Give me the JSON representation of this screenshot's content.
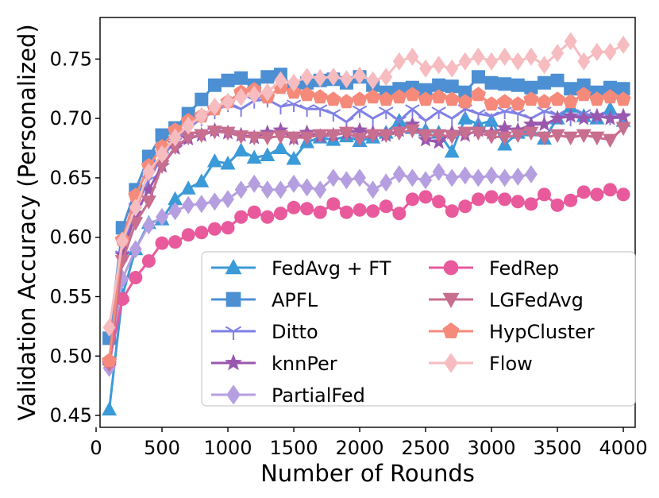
{
  "chart_data": {
    "type": "line",
    "title": "",
    "xlabel": "Number of Rounds",
    "ylabel": "Validation Accuracy (Personalized)",
    "xlim": [
      30,
      4090
    ],
    "ylim": [
      0.44,
      0.785
    ],
    "xticks": [
      0,
      500,
      1000,
      1500,
      2000,
      2500,
      3000,
      3500,
      4000
    ],
    "yticks": [
      0.45,
      0.5,
      0.55,
      0.6,
      0.65,
      0.7,
      0.75
    ],
    "ytick_labels": [
      "0.45",
      "0.50",
      "0.55",
      "0.60",
      "0.65",
      "0.70",
      "0.75"
    ],
    "grid": false,
    "legend_position": "lower-right",
    "legend_columns": 2,
    "series": [
      {
        "name": "FedAvg + FT",
        "color": "#3b9ad8",
        "marker": "triangle",
        "x": [
          100,
          200,
          300,
          400,
          500,
          600,
          700,
          800,
          900,
          1000,
          1100,
          1200,
          1300,
          1400,
          1500,
          1600,
          1700,
          1800,
          1900,
          2000,
          2100,
          2200,
          2300,
          2400,
          2500,
          2600,
          2700,
          2800,
          2900,
          3000,
          3100,
          3200,
          3300,
          3400,
          3500,
          3600,
          3700,
          3800,
          3900,
          4000
        ],
        "y": [
          0.455,
          0.551,
          0.59,
          0.612,
          0.615,
          0.632,
          0.641,
          0.647,
          0.664,
          0.662,
          0.673,
          0.667,
          0.669,
          0.675,
          0.666,
          0.68,
          0.684,
          0.682,
          0.685,
          0.681,
          0.684,
          0.688,
          0.698,
          0.692,
          0.69,
          0.688,
          0.672,
          0.7,
          0.695,
          0.698,
          0.678,
          0.688,
          0.69,
          0.683,
          0.7,
          0.71,
          0.702,
          0.7,
          0.708,
          0.698
        ]
      },
      {
        "name": "APFL",
        "color": "#4c8fd3",
        "marker": "square",
        "x": [
          100,
          200,
          300,
          400,
          500,
          600,
          700,
          800,
          900,
          1000,
          1100,
          1200,
          1300,
          1400,
          1500,
          1600,
          1700,
          1800,
          1900,
          2000,
          2100,
          2200,
          2300,
          2400,
          2500,
          2600,
          2700,
          2800,
          2900,
          3000,
          3100,
          3200,
          3300,
          3400,
          3500,
          3600,
          3700,
          3800,
          3900,
          4000
        ],
        "y": [
          0.515,
          0.608,
          0.64,
          0.668,
          0.686,
          0.692,
          0.704,
          0.716,
          0.728,
          0.732,
          0.734,
          0.728,
          0.735,
          0.737,
          0.726,
          0.73,
          0.732,
          0.733,
          0.73,
          0.735,
          0.728,
          0.722,
          0.725,
          0.726,
          0.724,
          0.728,
          0.727,
          0.722,
          0.735,
          0.73,
          0.729,
          0.728,
          0.726,
          0.73,
          0.732,
          0.725,
          0.728,
          0.722,
          0.726,
          0.725
        ]
      },
      {
        "name": "Ditto",
        "color": "#8080e6",
        "marker": "tri_down",
        "x": [
          100,
          200,
          300,
          400,
          500,
          600,
          700,
          800,
          900,
          1000,
          1100,
          1200,
          1300,
          1400,
          1500,
          1600,
          1700,
          1800,
          1900,
          2000,
          2100,
          2200,
          2300,
          2400,
          2500,
          2600,
          2700,
          2800,
          2900,
          3000,
          3100,
          3200,
          3300,
          3400,
          3500,
          3600,
          3700,
          3800,
          3900,
          4000
        ],
        "y": [
          0.49,
          0.585,
          0.625,
          0.648,
          0.668,
          0.68,
          0.692,
          0.7,
          0.706,
          0.712,
          0.708,
          0.715,
          0.716,
          0.71,
          0.712,
          0.708,
          0.708,
          0.704,
          0.697,
          0.707,
          0.7,
          0.706,
          0.698,
          0.708,
          0.698,
          0.706,
          0.7,
          0.708,
          0.704,
          0.702,
          0.706,
          0.704,
          0.7,
          0.706,
          0.703,
          0.7,
          0.704,
          0.702,
          0.701,
          0.7
        ]
      },
      {
        "name": "knnPer",
        "color": "#9a57ae",
        "marker": "star",
        "x": [
          100,
          200,
          300,
          400,
          500,
          600,
          700,
          800,
          900,
          1000,
          1100,
          1200,
          1300,
          1400,
          1500,
          1600,
          1700,
          1800,
          1900,
          2000,
          2100,
          2200,
          2300,
          2400,
          2500,
          2600,
          2700,
          2800,
          2900,
          3000,
          3100,
          3200,
          3300,
          3400,
          3500,
          3600,
          3700,
          3800,
          3900,
          4000
        ],
        "y": [
          0.493,
          0.585,
          0.62,
          0.64,
          0.66,
          0.675,
          0.683,
          0.686,
          0.69,
          0.688,
          0.686,
          0.684,
          0.688,
          0.69,
          0.683,
          0.688,
          0.685,
          0.686,
          0.688,
          0.69,
          0.688,
          0.686,
          0.69,
          0.695,
          0.682,
          0.68,
          0.688,
          0.686,
          0.69,
          0.688,
          0.692,
          0.69,
          0.695,
          0.695,
          0.7,
          0.702,
          0.7,
          0.702,
          0.7,
          0.702
        ]
      },
      {
        "name": "PartialFed",
        "color": "#b59fe0",
        "marker": "diamond",
        "x": [
          100,
          200,
          300,
          400,
          500,
          600,
          700,
          800,
          900,
          1000,
          1100,
          1200,
          1300,
          1400,
          1500,
          1600,
          1700,
          1800,
          1900,
          2000,
          2100,
          2200,
          2300,
          2400,
          2500,
          2600,
          2700,
          2800,
          2900,
          3000,
          3100,
          3200,
          3300
        ],
        "y": [
          0.49,
          0.565,
          0.59,
          0.61,
          0.617,
          0.622,
          0.627,
          0.628,
          0.63,
          0.632,
          0.64,
          0.645,
          0.64,
          0.64,
          0.645,
          0.642,
          0.64,
          0.65,
          0.648,
          0.65,
          0.64,
          0.646,
          0.653,
          0.65,
          0.648,
          0.655,
          0.65,
          0.652,
          0.65,
          0.652,
          0.65,
          0.651,
          0.653
        ]
      },
      {
        "name": "FedRep",
        "color": "#e85a9c",
        "marker": "circle",
        "x": [
          100,
          200,
          300,
          400,
          500,
          600,
          700,
          800,
          900,
          1000,
          1100,
          1200,
          1300,
          1400,
          1500,
          1600,
          1700,
          1800,
          1900,
          2000,
          2100,
          2200,
          2300,
          2400,
          2500,
          2600,
          2700,
          2800,
          2900,
          3000,
          3100,
          3200,
          3300,
          3400,
          3500,
          3600,
          3700,
          3800,
          3900,
          4000
        ],
        "y": [
          0.495,
          0.548,
          0.566,
          0.58,
          0.595,
          0.596,
          0.602,
          0.604,
          0.607,
          0.608,
          0.617,
          0.621,
          0.617,
          0.62,
          0.625,
          0.624,
          0.621,
          0.628,
          0.621,
          0.623,
          0.622,
          0.626,
          0.62,
          0.632,
          0.634,
          0.63,
          0.622,
          0.626,
          0.632,
          0.634,
          0.632,
          0.63,
          0.628,
          0.636,
          0.627,
          0.631,
          0.638,
          0.636,
          0.64,
          0.636
        ]
      },
      {
        "name": "LGFedAvg",
        "color": "#c86e8e",
        "marker": "triangle_down",
        "x": [
          100,
          200,
          300,
          400,
          500,
          600,
          700,
          800,
          900,
          1000,
          1100,
          1200,
          1300,
          1400,
          1500,
          1600,
          1700,
          1800,
          1900,
          2000,
          2100,
          2200,
          2300,
          2400,
          2500,
          2600,
          2700,
          2800,
          2900,
          3000,
          3100,
          3200,
          3300,
          3400,
          3500,
          3600,
          3700,
          3800,
          3900,
          4000
        ],
        "y": [
          0.493,
          0.58,
          0.612,
          0.63,
          0.66,
          0.676,
          0.684,
          0.686,
          0.689,
          0.688,
          0.685,
          0.684,
          0.684,
          0.685,
          0.684,
          0.684,
          0.686,
          0.686,
          0.688,
          0.683,
          0.686,
          0.686,
          0.688,
          0.69,
          0.686,
          0.686,
          0.685,
          0.688,
          0.688,
          0.685,
          0.684,
          0.686,
          0.688,
          0.684,
          0.686,
          0.684,
          0.686,
          0.684,
          0.682,
          0.692
        ]
      },
      {
        "name": "HypCluster",
        "color": "#f58a7b",
        "marker": "pentagon",
        "x": [
          100,
          200,
          300,
          400,
          500,
          600,
          700,
          800,
          900,
          1000,
          1100,
          1200,
          1300,
          1400,
          1500,
          1600,
          1700,
          1800,
          1900,
          2000,
          2100,
          2200,
          2300,
          2400,
          2500,
          2600,
          2700,
          2800,
          2900,
          3000,
          3100,
          3200,
          3300,
          3400,
          3500,
          3600,
          3700,
          3800,
          3900,
          4000
        ],
        "y": [
          0.496,
          0.598,
          0.635,
          0.66,
          0.676,
          0.69,
          0.698,
          0.702,
          0.708,
          0.714,
          0.722,
          0.724,
          0.718,
          0.726,
          0.722,
          0.72,
          0.718,
          0.716,
          0.714,
          0.716,
          0.718,
          0.716,
          0.718,
          0.72,
          0.716,
          0.718,
          0.716,
          0.714,
          0.72,
          0.712,
          0.714,
          0.712,
          0.716,
          0.714,
          0.716,
          0.714,
          0.72,
          0.716,
          0.718,
          0.716
        ]
      },
      {
        "name": "Flow",
        "color": "#f6bcc0",
        "marker": "diamond",
        "x": [
          100,
          200,
          300,
          400,
          500,
          600,
          700,
          800,
          900,
          1000,
          1100,
          1200,
          1300,
          1400,
          1500,
          1600,
          1700,
          1800,
          1900,
          2000,
          2100,
          2200,
          2300,
          2400,
          2500,
          2600,
          2700,
          2800,
          2900,
          3000,
          3100,
          3200,
          3300,
          3400,
          3500,
          3600,
          3700,
          3800,
          3900,
          4000
        ],
        "y": [
          0.524,
          0.597,
          0.625,
          0.655,
          0.67,
          0.684,
          0.694,
          0.702,
          0.71,
          0.714,
          0.718,
          0.72,
          0.722,
          0.732,
          0.73,
          0.735,
          0.734,
          0.735,
          0.733,
          0.736,
          0.732,
          0.735,
          0.748,
          0.752,
          0.742,
          0.745,
          0.742,
          0.748,
          0.752,
          0.748,
          0.752,
          0.748,
          0.752,
          0.745,
          0.755,
          0.765,
          0.748,
          0.756,
          0.756,
          0.762
        ]
      }
    ]
  }
}
